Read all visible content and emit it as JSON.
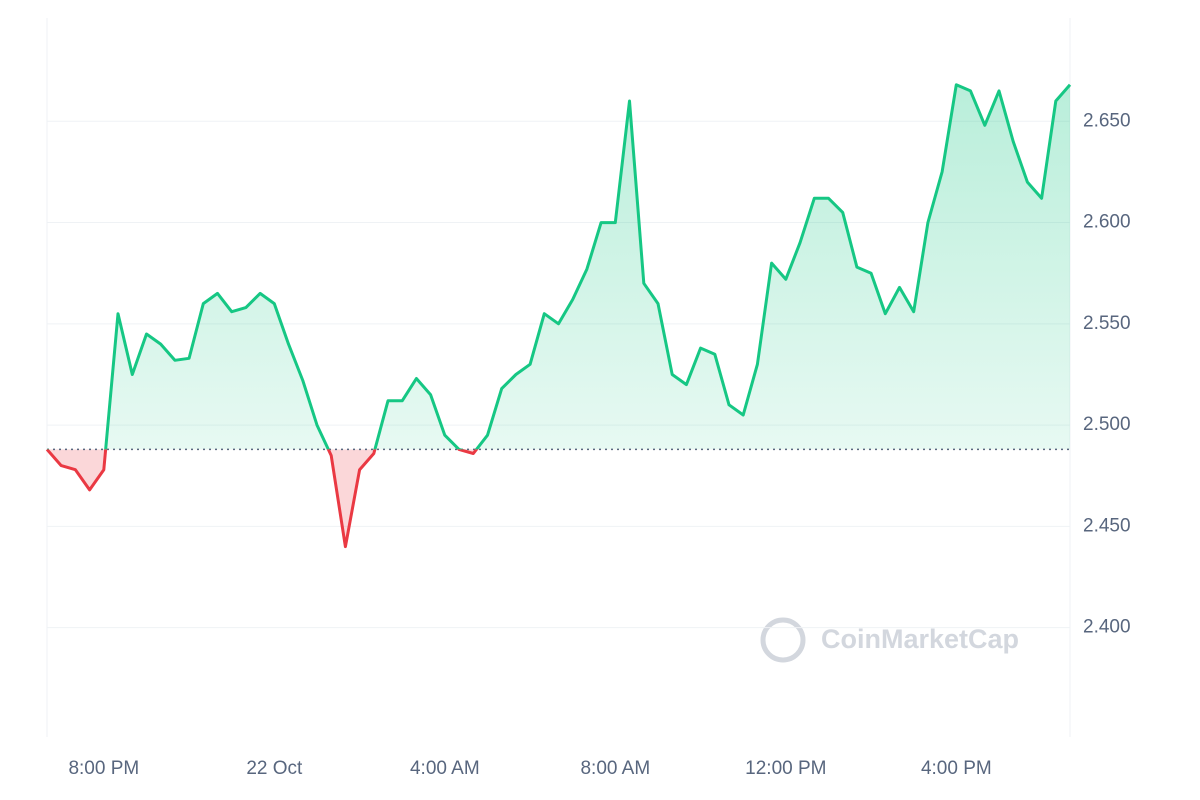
{
  "chart_data": {
    "type": "line",
    "categories": [
      null,
      null,
      null,
      null,
      "8:00 PM",
      null,
      null,
      null,
      null,
      null,
      null,
      null,
      null,
      null,
      null,
      null,
      "22 Oct",
      null,
      null,
      null,
      null,
      null,
      null,
      null,
      null,
      null,
      null,
      null,
      "4:00 AM",
      null,
      null,
      null,
      null,
      null,
      null,
      null,
      null,
      null,
      null,
      null,
      "8:00 AM",
      null,
      null,
      null,
      null,
      null,
      null,
      null,
      null,
      null,
      null,
      null,
      "12:00 PM",
      null,
      null,
      null,
      null,
      null,
      null,
      null,
      null,
      null,
      null,
      null,
      "4:00 PM",
      null,
      null,
      null,
      null,
      null,
      null,
      null,
      null
    ],
    "series": [
      {
        "color": "#16c784",
        "below_color": "#ea3943",
        "values": [
          2.488,
          2.48,
          2.478,
          2.468,
          2.478,
          2.555,
          2.525,
          2.545,
          2.54,
          2.532,
          2.533,
          2.56,
          2.565,
          2.556,
          2.558,
          2.565,
          2.56,
          2.54,
          2.522,
          2.5,
          2.485,
          2.44,
          2.478,
          2.486,
          2.512,
          2.512,
          2.523,
          2.515,
          2.495,
          2.488,
          2.486,
          2.495,
          2.518,
          2.525,
          2.53,
          2.555,
          2.55,
          2.562,
          2.577,
          2.6,
          2.6,
          2.66,
          2.57,
          2.56,
          2.525,
          2.52,
          2.538,
          2.535,
          2.51,
          2.505,
          2.53,
          2.58,
          2.572,
          2.59,
          2.612,
          2.612,
          2.605,
          2.578,
          2.575,
          2.555,
          2.568,
          2.556,
          2.6,
          2.625,
          2.668,
          2.665,
          2.648,
          2.665,
          2.64,
          2.62,
          2.612,
          2.66,
          2.668
        ]
      }
    ],
    "baseline": 2.488,
    "ylim": [
      2.346,
      2.701
    ],
    "yticks": [
      {
        "value": 2.4,
        "label": "2.400"
      },
      {
        "value": 2.45,
        "label": "2.450"
      },
      {
        "value": 2.5,
        "label": "2.500"
      },
      {
        "value": 2.55,
        "label": "2.550"
      },
      {
        "value": 2.6,
        "label": "2.600"
      },
      {
        "value": 2.65,
        "label": "2.650"
      }
    ],
    "y_axis_side": "right",
    "grid": true,
    "watermark": "CoinMarketCap"
  }
}
